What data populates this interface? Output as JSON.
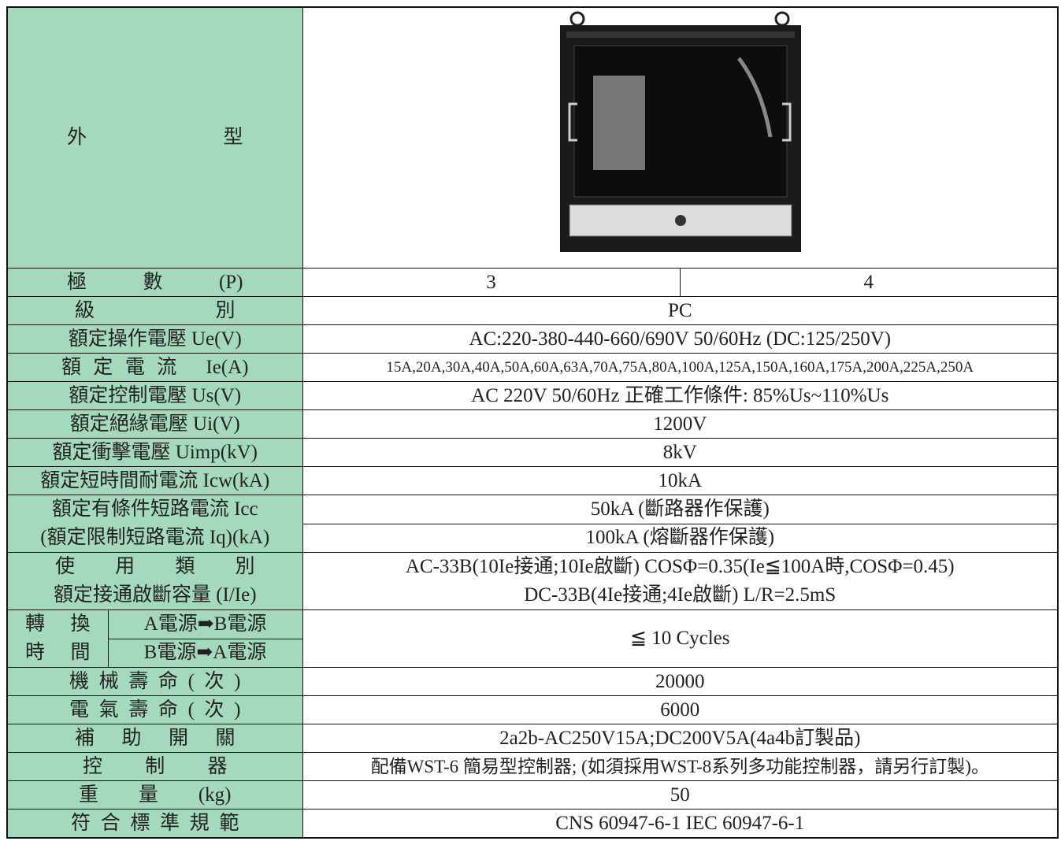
{
  "table": {
    "appearance": {
      "label": "外型"
    },
    "poles": {
      "label": "極數(P)",
      "values": [
        3,
        4
      ]
    },
    "rows": [
      {
        "label": "級別",
        "value": "PC"
      },
      {
        "label": "額定操作電壓 Ue(V)",
        "value": "AC:220-380-440-660/690V 50/60Hz (DC:125/250V)"
      },
      {
        "label": "額定電流 Ie(A)",
        "value": "15A,20A,30A,40A,50A,60A,63A,70A,75A,80A,100A,125A,150A,160A,175A,200A,225A,250A"
      },
      {
        "label": "額定控制電壓 Us(V)",
        "value": "AC 220V 50/60Hz 正確工作條件: 85%Us~110%Us"
      },
      {
        "label": "額定絕緣電壓 Ui(V)",
        "value": "1200V"
      },
      {
        "label": "額定衝擊電壓 Uimp(kV)",
        "value": "8kV"
      },
      {
        "label": "額定短時間耐電流 Icw(kA)",
        "value": "10kA"
      }
    ],
    "short_circuit": {
      "labels": [
        "額定有條件短路電流 Icc",
        "(額定限制短路電流 Iq)(kA)"
      ],
      "values": [
        "50kA (斷路器作保護)",
        "100kA (熔斷器作保護)"
      ]
    },
    "category": {
      "labels": [
        "使用類別",
        "額定接通啟斷容量 (I/Ie)"
      ],
      "values": [
        "AC-33B(10Ie接通;10Ie啟斷) COSΦ=0.35(Ie≦100A時,COSΦ=0.45)",
        "DC-33B(4Ie接通;4Ie啟斷) L/R=2.5mS"
      ]
    },
    "transfer": {
      "label": [
        "轉換",
        "時間"
      ],
      "directions": [
        "A電源➡B電源",
        "B電源➡A電源"
      ],
      "value": "≦ 10 Cycles"
    },
    "rows2": [
      {
        "label": "機械壽命(次)",
        "value": "20000"
      },
      {
        "label": "電氣壽命(次)",
        "value": "6000"
      },
      {
        "label": "補助開關",
        "value": "2a2b-AC250V15A;DC200V5A(4a4b訂製品)"
      },
      {
        "label": "控制器",
        "value": "配備WST-6 簡易型控制器; (如須採用WST-8系列多功能控制器，請另行訂製)。"
      },
      {
        "label": "重量(kg)",
        "value": "50"
      },
      {
        "label": "符合標準規範",
        "value": "CNS 60947-6-1 IEC 60947-6-1"
      }
    ]
  }
}
